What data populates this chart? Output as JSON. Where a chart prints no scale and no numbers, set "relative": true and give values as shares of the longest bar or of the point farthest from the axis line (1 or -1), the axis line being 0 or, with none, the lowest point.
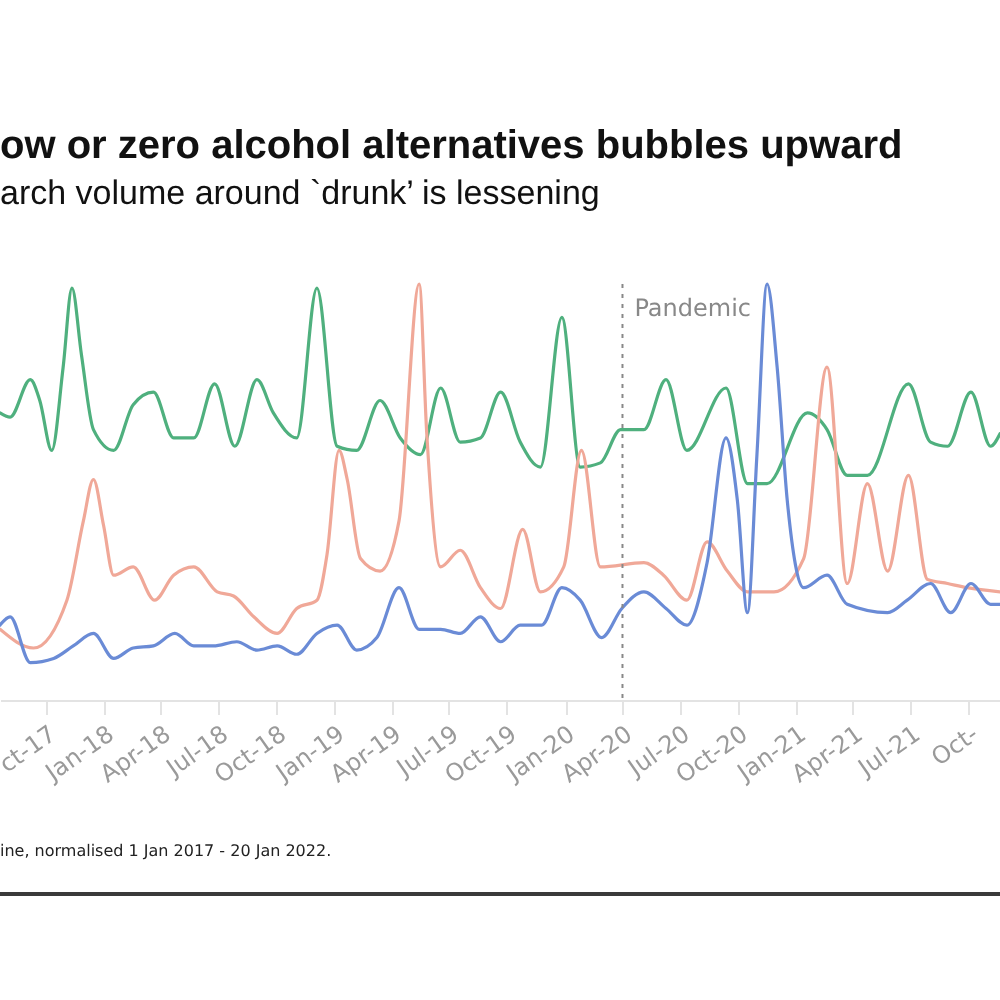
{
  "chart_data": {
    "type": "line",
    "title": "ow or zero alcohol alternatives bubbles upward",
    "subtitle": "arch volume around `drunk’ is lessening",
    "annotations": [
      "ine, normalised 1 Jan 2017 - 20 Jan 2022."
    ],
    "relative": true,
    "line_style": "solid",
    "marker": "none",
    "grid": false,
    "xlim": [
      "2017-07-20",
      "2021-11-20"
    ],
    "xticks": [
      {
        "value": "2017-10-01",
        "label": "ct-17"
      },
      {
        "value": "2018-01-01",
        "label": "Jan-18"
      },
      {
        "value": "2018-04-01",
        "label": "Apr-18"
      },
      {
        "value": "2018-07-01",
        "label": "Jul-18"
      },
      {
        "value": "2018-10-01",
        "label": "Oct-18"
      },
      {
        "value": "2019-01-01",
        "label": "Jan-19"
      },
      {
        "value": "2019-04-01",
        "label": "Apr-19"
      },
      {
        "value": "2019-07-01",
        "label": "Jul-19"
      },
      {
        "value": "2019-10-01",
        "label": "Oct-19"
      },
      {
        "value": "2020-01-01",
        "label": "Jan-20"
      },
      {
        "value": "2020-04-01",
        "label": "Apr-20"
      },
      {
        "value": "2020-07-01",
        "label": "Jul-20"
      },
      {
        "value": "2020-10-01",
        "label": "Oct-20"
      },
      {
        "value": "2021-01-01",
        "label": "Jan-21"
      },
      {
        "value": "2021-04-01",
        "label": "Apr-21"
      },
      {
        "value": "2021-07-01",
        "label": "Jul-21"
      },
      {
        "value": "2021-10-01",
        "label": "Oct-"
      }
    ],
    "ref_lines": [
      {
        "axis": "x",
        "value": "2020-04-01",
        "label": "Pandemic",
        "color": "#888888",
        "line_style": "dotted"
      }
    ],
    "series": [
      {
        "color": "#4fb07e",
        "x": [
          "2017-07-20",
          "2017-08-05",
          "2017-09-06",
          "2017-09-21",
          "2017-10-10",
          "2017-10-28",
          "2017-11-11",
          "2017-11-26",
          "2017-12-15",
          "2018-01-16",
          "2018-02-16",
          "2018-03-20",
          "2018-04-21",
          "2018-05-23",
          "2018-06-25",
          "2018-07-27",
          "2018-08-31",
          "2018-09-26",
          "2018-11-02",
          "2018-12-04",
          "2019-01-05",
          "2019-02-05",
          "2019-03-14",
          "2019-04-15",
          "2019-05-17",
          "2019-06-18",
          "2019-07-19",
          "2019-08-20",
          "2019-09-21",
          "2019-10-22",
          "2019-11-23",
          "2019-12-27",
          "2020-01-25",
          "2020-02-26",
          "2020-03-29",
          "2020-05-05",
          "2020-06-09",
          "2020-07-12",
          "2020-09-12",
          "2020-10-16",
          "2020-11-16",
          "2021-01-19",
          "2021-02-19",
          "2021-03-23",
          "2021-04-24",
          "2021-06-28",
          "2021-08-02",
          "2021-08-29",
          "2021-10-05",
          "2021-11-05",
          "2021-11-20"
        ],
        "values": [
          0.69,
          0.68,
          0.77,
          0.72,
          0.6,
          0.8,
          0.99,
          0.83,
          0.65,
          0.6,
          0.71,
          0.74,
          0.63,
          0.63,
          0.76,
          0.61,
          0.77,
          0.69,
          0.63,
          0.99,
          0.61,
          0.6,
          0.72,
          0.63,
          0.59,
          0.75,
          0.62,
          0.63,
          0.74,
          0.62,
          0.56,
          0.92,
          0.56,
          0.57,
          0.65,
          0.65,
          0.77,
          0.6,
          0.75,
          0.52,
          0.52,
          0.69,
          0.65,
          0.54,
          0.54,
          0.76,
          0.62,
          0.61,
          0.74,
          0.61,
          0.64
        ]
      },
      {
        "color": "#f0a898",
        "x": [
          "2017-07-20",
          "2017-09-11",
          "2017-11-03",
          "2017-11-29",
          "2017-12-15",
          "2017-12-31",
          "2018-01-16",
          "2018-02-16",
          "2018-03-22",
          "2018-04-21",
          "2018-05-23",
          "2018-06-29",
          "2018-07-25",
          "2018-08-26",
          "2018-10-02",
          "2018-11-02",
          "2018-12-04",
          "2018-12-20",
          "2019-01-08",
          "2019-01-21",
          "2019-02-11",
          "2019-03-14",
          "2019-04-13",
          "2019-05-15",
          "2019-05-27",
          "2019-06-18",
          "2019-07-19",
          "2019-08-20",
          "2019-09-21",
          "2019-10-26",
          "2019-11-23",
          "2019-12-30",
          "2020-01-27",
          "2020-02-26",
          "2020-05-05",
          "2020-06-05",
          "2020-07-12",
          "2020-08-13",
          "2020-09-14",
          "2020-10-16",
          "2020-11-27",
          "2021-01-13",
          "2021-02-19",
          "2021-03-23",
          "2021-04-24",
          "2021-05-26",
          "2021-06-28",
          "2021-07-28",
          "2021-08-29",
          "2021-09-29",
          "2021-11-20"
        ],
        "values": [
          0.17,
          0.125,
          0.24,
          0.43,
          0.53,
          0.42,
          0.3,
          0.32,
          0.24,
          0.3,
          0.32,
          0.26,
          0.25,
          0.2,
          0.16,
          0.22,
          0.24,
          0.35,
          0.6,
          0.53,
          0.34,
          0.31,
          0.43,
          1.0,
          0.64,
          0.32,
          0.36,
          0.27,
          0.22,
          0.41,
          0.26,
          0.32,
          0.6,
          0.32,
          0.33,
          0.3,
          0.24,
          0.38,
          0.31,
          0.26,
          0.26,
          0.34,
          0.8,
          0.28,
          0.52,
          0.31,
          0.54,
          0.29,
          0.28,
          0.27,
          0.26
        ]
      },
      {
        "color": "#6a8bd6",
        "x": [
          "2017-07-20",
          "2017-08-05",
          "2017-09-06",
          "2017-10-13",
          "2017-11-13",
          "2017-12-15",
          "2018-01-16",
          "2018-02-16",
          "2018-03-20",
          "2018-04-23",
          "2018-05-23",
          "2018-06-23",
          "2018-07-30",
          "2018-08-31",
          "2018-10-02",
          "2018-11-02",
          "2018-12-04",
          "2019-01-05",
          "2019-02-05",
          "2019-03-09",
          "2019-04-13",
          "2019-05-15",
          "2019-06-18",
          "2019-07-19",
          "2019-08-20",
          "2019-09-21",
          "2019-10-22",
          "2019-11-25",
          "2019-12-27",
          "2020-01-25",
          "2020-02-28",
          "2020-03-31",
          "2020-05-05",
          "2020-06-09",
          "2020-07-12",
          "2020-08-13",
          "2020-09-12",
          "2020-09-30",
          "2020-10-16",
          "2020-10-31",
          "2020-11-16",
          "2020-12-02",
          "2020-12-18",
          "2021-01-13",
          "2021-02-19",
          "2021-03-23",
          "2021-05-26",
          "2021-06-26",
          "2021-08-02",
          "2021-09-03",
          "2021-10-05",
          "2021-11-05",
          "2021-11-20"
        ],
        "values": [
          0.18,
          0.2,
          0.09,
          0.1,
          0.13,
          0.16,
          0.1,
          0.125,
          0.13,
          0.16,
          0.13,
          0.13,
          0.14,
          0.12,
          0.13,
          0.11,
          0.16,
          0.18,
          0.12,
          0.15,
          0.27,
          0.17,
          0.17,
          0.16,
          0.2,
          0.14,
          0.18,
          0.18,
          0.27,
          0.24,
          0.15,
          0.22,
          0.26,
          0.22,
          0.18,
          0.33,
          0.63,
          0.48,
          0.21,
          0.59,
          1.0,
          0.8,
          0.48,
          0.27,
          0.3,
          0.23,
          0.21,
          0.24,
          0.28,
          0.21,
          0.28,
          0.23,
          0.23
        ]
      }
    ]
  }
}
